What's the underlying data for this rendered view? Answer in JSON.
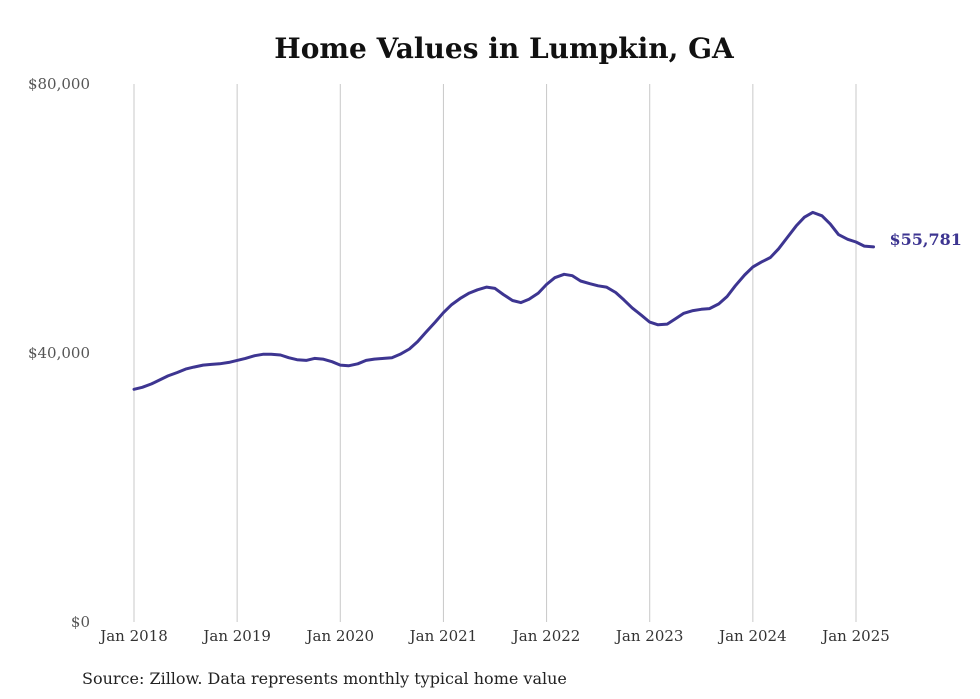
{
  "chart_data": {
    "type": "line",
    "title": "Home Values in Lumpkin, GA",
    "xlabel": "",
    "ylabel": "",
    "ylim": [
      0,
      80000
    ],
    "yticks": [
      {
        "value": 0,
        "label": "$0"
      },
      {
        "value": 40000,
        "label": "$40,000"
      },
      {
        "value": 80000,
        "label": "$80,000"
      }
    ],
    "xticks": [
      {
        "value": 2018.0,
        "label": "Jan 2018"
      },
      {
        "value": 2019.0,
        "label": "Jan 2019"
      },
      {
        "value": 2020.0,
        "label": "Jan 2020"
      },
      {
        "value": 2021.0,
        "label": "Jan 2021"
      },
      {
        "value": 2022.0,
        "label": "Jan 2022"
      },
      {
        "value": 2023.0,
        "label": "Jan 2023"
      },
      {
        "value": 2024.0,
        "label": "Jan 2024"
      },
      {
        "value": 2025.0,
        "label": "Jan 2025"
      }
    ],
    "grid": "vertical",
    "line_color": "#3d3591",
    "end_label": "$55,781",
    "source_note": "Source: Zillow. Data represents monthly typical home value",
    "series": [
      {
        "values": [
          [
            2018.0,
            34600
          ],
          [
            2018.08,
            34900
          ],
          [
            2018.17,
            35400
          ],
          [
            2018.25,
            36000
          ],
          [
            2018.33,
            36600
          ],
          [
            2018.42,
            37100
          ],
          [
            2018.5,
            37600
          ],
          [
            2018.58,
            37900
          ],
          [
            2018.67,
            38200
          ],
          [
            2018.75,
            38300
          ],
          [
            2018.83,
            38400
          ],
          [
            2018.92,
            38600
          ],
          [
            2019.0,
            38900
          ],
          [
            2019.08,
            39200
          ],
          [
            2019.17,
            39600
          ],
          [
            2019.25,
            39800
          ],
          [
            2019.33,
            39800
          ],
          [
            2019.42,
            39700
          ],
          [
            2019.5,
            39300
          ],
          [
            2019.58,
            39000
          ],
          [
            2019.67,
            38900
          ],
          [
            2019.75,
            39200
          ],
          [
            2019.83,
            39100
          ],
          [
            2019.92,
            38700
          ],
          [
            2020.0,
            38200
          ],
          [
            2020.08,
            38100
          ],
          [
            2020.17,
            38400
          ],
          [
            2020.25,
            38900
          ],
          [
            2020.33,
            39100
          ],
          [
            2020.42,
            39200
          ],
          [
            2020.5,
            39300
          ],
          [
            2020.58,
            39800
          ],
          [
            2020.67,
            40600
          ],
          [
            2020.75,
            41700
          ],
          [
            2020.83,
            43100
          ],
          [
            2020.92,
            44600
          ],
          [
            2021.0,
            46000
          ],
          [
            2021.08,
            47200
          ],
          [
            2021.17,
            48200
          ],
          [
            2021.25,
            48900
          ],
          [
            2021.33,
            49400
          ],
          [
            2021.42,
            49800
          ],
          [
            2021.5,
            49600
          ],
          [
            2021.58,
            48700
          ],
          [
            2021.67,
            47800
          ],
          [
            2021.75,
            47500
          ],
          [
            2021.83,
            48000
          ],
          [
            2021.92,
            48900
          ],
          [
            2022.0,
            50200
          ],
          [
            2022.08,
            51200
          ],
          [
            2022.17,
            51700
          ],
          [
            2022.25,
            51500
          ],
          [
            2022.33,
            50700
          ],
          [
            2022.42,
            50300
          ],
          [
            2022.5,
            50000
          ],
          [
            2022.58,
            49800
          ],
          [
            2022.67,
            49000
          ],
          [
            2022.75,
            47900
          ],
          [
            2022.83,
            46700
          ],
          [
            2022.92,
            45600
          ],
          [
            2023.0,
            44600
          ],
          [
            2023.08,
            44200
          ],
          [
            2023.17,
            44300
          ],
          [
            2023.25,
            45100
          ],
          [
            2023.33,
            45900
          ],
          [
            2023.42,
            46300
          ],
          [
            2023.5,
            46500
          ],
          [
            2023.58,
            46600
          ],
          [
            2023.67,
            47300
          ],
          [
            2023.75,
            48400
          ],
          [
            2023.83,
            50000
          ],
          [
            2023.92,
            51600
          ],
          [
            2024.0,
            52800
          ],
          [
            2024.08,
            53500
          ],
          [
            2024.17,
            54200
          ],
          [
            2024.25,
            55500
          ],
          [
            2024.33,
            57100
          ],
          [
            2024.42,
            58900
          ],
          [
            2024.5,
            60200
          ],
          [
            2024.58,
            60900
          ],
          [
            2024.67,
            60400
          ],
          [
            2024.75,
            59200
          ],
          [
            2024.83,
            57600
          ],
          [
            2024.92,
            56900
          ],
          [
            2025.0,
            56500
          ],
          [
            2025.08,
            55900
          ],
          [
            2025.17,
            55781
          ]
        ]
      }
    ]
  }
}
